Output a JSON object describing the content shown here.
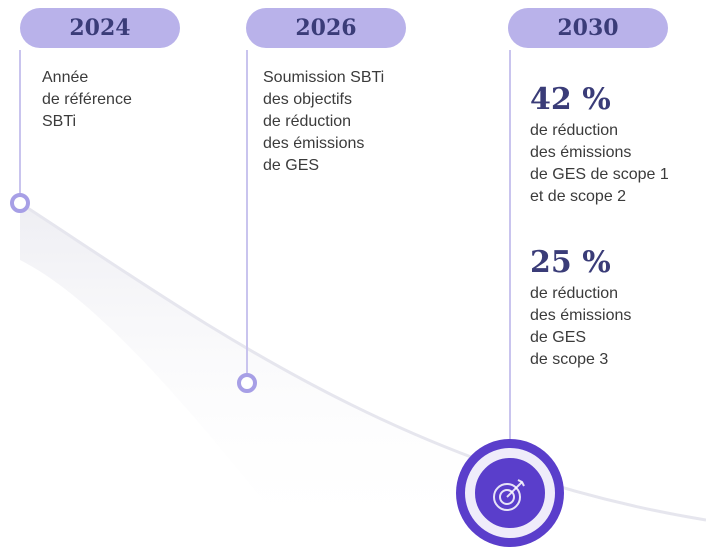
{
  "timeline": [
    {
      "year": "2024",
      "lines": [
        "Année",
        "de référence",
        "SBTi"
      ]
    },
    {
      "year": "2026",
      "lines": [
        "Soumission SBTi",
        "des objectifs",
        "de réduction",
        "des émissions",
        "de GES"
      ]
    },
    {
      "year": "2030",
      "targets": [
        {
          "value": "42 %",
          "lines": [
            "de réduction",
            "des émissions",
            "de GES de scope 1",
            "et de scope 2"
          ]
        },
        {
          "value": "25 %",
          "lines": [
            "de réduction",
            "des émissions",
            "de GES",
            "de scope 3"
          ]
        }
      ]
    }
  ]
}
